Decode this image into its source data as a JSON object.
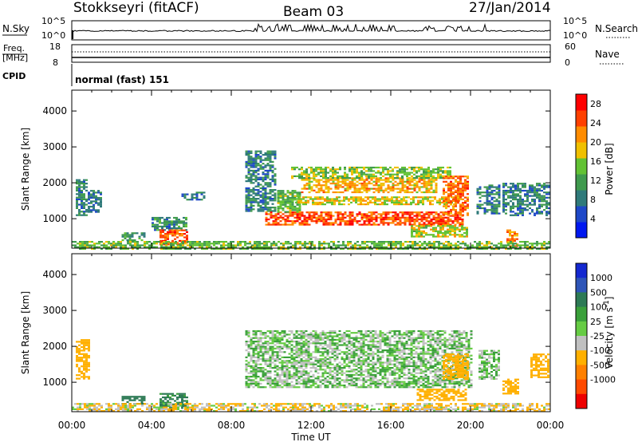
{
  "header": {
    "station": "Stokkseyri (fitACF)",
    "beam": "Beam 03",
    "date": "27/Jan/2014"
  },
  "noise_panel": {
    "left_label": "N.Sky",
    "left_ticks": [
      "10^5",
      "10^0"
    ],
    "right_label": "N.Search",
    "right_ticks": [
      "10^5",
      "10^0"
    ]
  },
  "freq_panel": {
    "left_label_1": "Freq.",
    "left_label_2": "[MHz]",
    "left_ticks": [
      "18",
      "8"
    ],
    "right_label": "Nave",
    "right_ticks": [
      "60",
      "0"
    ]
  },
  "cpid_panel": {
    "label": "CPID",
    "mode": "normal (fast) 151"
  },
  "colors": {
    "power_scale": [
      "#0018f0",
      "#1e48c8",
      "#2f7a7a",
      "#3f9a4e",
      "#62c234",
      "#f0c000",
      "#ff8c00",
      "#ff4000",
      "#ff0000"
    ],
    "velocity_scale": [
      "#1428d0",
      "#2e55b8",
      "#2d7a55",
      "#3aa03a",
      "#66cc44",
      "#c0c0c0",
      "#ffb000",
      "#ff8000",
      "#ff4a00",
      "#ee0000"
    ]
  },
  "chart_data": [
    {
      "type": "heatmap",
      "title": "Power",
      "xlabel": "Time UT",
      "ylabel": "Slant Range [km]",
      "xlim": [
        "00:00",
        "24:00"
      ],
      "ylim": [
        180,
        4580
      ],
      "x_ticks": [
        "00:00",
        "04:00",
        "08:00",
        "12:00",
        "16:00",
        "20:00",
        "00:00"
      ],
      "y_ticks": [
        1000,
        2000,
        3000,
        4000
      ],
      "colorbar": {
        "label": "Power [dB]",
        "ticks": [
          4,
          8,
          12,
          16,
          20,
          24,
          28
        ],
        "range": [
          0,
          30
        ]
      },
      "regions": [
        {
          "t": [
            0.2,
            0.8
          ],
          "r": [
            1100,
            2100
          ],
          "level": 9
        },
        {
          "t": [
            0.8,
            1.5
          ],
          "r": [
            1200,
            1800
          ],
          "level": 8
        },
        {
          "t": [
            2.5,
            3.6
          ],
          "r": [
            380,
            620
          ],
          "level": 11
        },
        {
          "t": [
            4.0,
            5.7
          ],
          "r": [
            700,
            1050
          ],
          "level": 10
        },
        {
          "t": [
            4.4,
            5.8
          ],
          "r": [
            280,
            700
          ],
          "level": 24
        },
        {
          "t": [
            5.5,
            6.6
          ],
          "r": [
            1550,
            1750
          ],
          "level": 8
        },
        {
          "t": [
            8.7,
            10.2
          ],
          "r": [
            1200,
            2900
          ],
          "level": 9
        },
        {
          "t": [
            9.7,
            19.6
          ],
          "r": [
            820,
            1200
          ],
          "level": 25
        },
        {
          "t": [
            10.3,
            11.5
          ],
          "r": [
            1200,
            1800
          ],
          "level": 14
        },
        {
          "t": [
            11.5,
            18.3
          ],
          "r": [
            1750,
            2150
          ],
          "level": 20
        },
        {
          "t": [
            11.0,
            19.0
          ],
          "r": [
            2150,
            2450
          ],
          "level": 15
        },
        {
          "t": [
            11.2,
            19.4
          ],
          "r": [
            1380,
            1620
          ],
          "level": 18
        },
        {
          "t": [
            17.0,
            19.8
          ],
          "r": [
            500,
            820
          ],
          "level": 17
        },
        {
          "t": [
            18.6,
            19.9
          ],
          "r": [
            1100,
            2200
          ],
          "level": 23
        },
        {
          "t": [
            20.3,
            21.4
          ],
          "r": [
            1150,
            1950
          ],
          "level": 9
        },
        {
          "t": [
            21.6,
            23.9
          ],
          "r": [
            1100,
            2000
          ],
          "level": 9
        },
        {
          "t": [
            21.8,
            22.3
          ],
          "r": [
            250,
            700
          ],
          "level": 22
        },
        {
          "t": [
            0.0,
            24.0
          ],
          "r": [
            180,
            380
          ],
          "level": 14
        }
      ]
    },
    {
      "type": "heatmap",
      "title": "Velocity",
      "xlabel": "Time UT",
      "ylabel": "Slant Range [km]",
      "xlim": [
        "00:00",
        "24:00"
      ],
      "ylim": [
        180,
        4580
      ],
      "x_ticks": [
        "00:00",
        "04:00",
        "08:00",
        "12:00",
        "16:00",
        "20:00",
        "00:00"
      ],
      "y_ticks": [
        1000,
        2000,
        3000,
        4000
      ],
      "colorbar": {
        "label": "Velocity [m s^-1]",
        "ticks": [
          1000,
          500,
          100,
          25,
          -25,
          -100,
          -500,
          -1000
        ]
      },
      "regions": [
        {
          "t": [
            0.2,
            0.9
          ],
          "r": [
            1100,
            2200
          ],
          "v": -300
        },
        {
          "t": [
            2.5,
            3.6
          ],
          "r": [
            400,
            620
          ],
          "v": 200
        },
        {
          "t": [
            4.4,
            5.8
          ],
          "r": [
            300,
            700
          ],
          "v": 150
        },
        {
          "t": [
            8.7,
            20.0
          ],
          "r": [
            850,
            2450
          ],
          "v": 0
        },
        {
          "t": [
            17.3,
            19.8
          ],
          "r": [
            500,
            820
          ],
          "v": -300
        },
        {
          "t": [
            18.6,
            19.9
          ],
          "r": [
            1100,
            1800
          ],
          "v": -400
        },
        {
          "t": [
            20.4,
            21.4
          ],
          "r": [
            1100,
            1900
          ],
          "v": 0
        },
        {
          "t": [
            21.6,
            22.4
          ],
          "r": [
            700,
            1100
          ],
          "v": -300
        },
        {
          "t": [
            23.0,
            23.9
          ],
          "r": [
            1150,
            1800
          ],
          "v": -250
        },
        {
          "t": [
            0.0,
            24.0
          ],
          "r": [
            180,
            420
          ],
          "v": -100
        }
      ]
    }
  ]
}
